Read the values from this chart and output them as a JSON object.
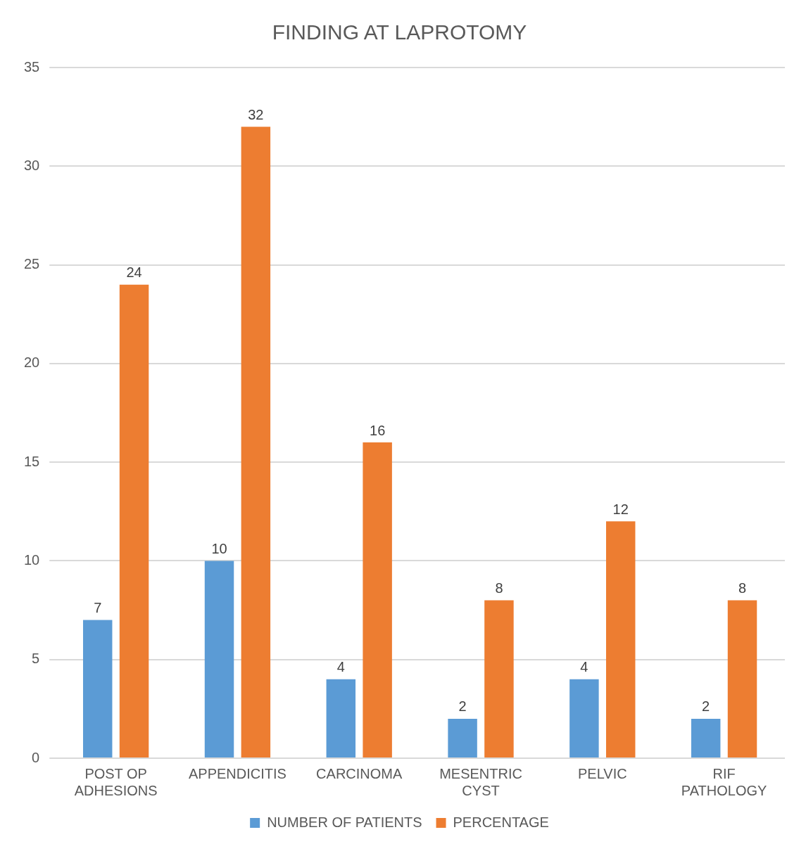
{
  "chart_data": {
    "type": "bar",
    "title": "FINDING AT LAPROTOMY",
    "categories": [
      "POST OP ADHESIONS",
      "APPENDICITIS",
      "CARCINOMA",
      "MESENTRIC CYST",
      "PELVIC",
      "RIF PATHOLOGY"
    ],
    "series": [
      {
        "name": "NUMBER OF PATIENTS",
        "color": "#5b9bd5",
        "values": [
          7,
          10,
          4,
          2,
          4,
          2
        ]
      },
      {
        "name": "PERCENTAGE",
        "color": "#ed7d31",
        "values": [
          24,
          32,
          16,
          8,
          12,
          8
        ]
      }
    ],
    "ylim": [
      0,
      35
    ],
    "yticks": [
      0,
      5,
      10,
      15,
      20,
      25,
      30,
      35
    ],
    "grid": "y",
    "legend": "bottom",
    "data_labels": true
  }
}
